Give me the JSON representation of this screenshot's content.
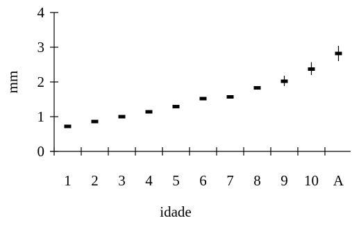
{
  "chart_data": {
    "type": "scatter",
    "title": "",
    "xlabel": "idade",
    "ylabel": "mm",
    "categories": [
      "1",
      "2",
      "3",
      "4",
      "5",
      "6",
      "7",
      "8",
      "9",
      "10",
      "A"
    ],
    "ylim": [
      0,
      4
    ],
    "yticks": [
      "0",
      "1",
      "2",
      "3",
      "4"
    ],
    "grid": false,
    "legend": "none",
    "series": [
      {
        "values": [
          0.72,
          0.86,
          1.0,
          1.14,
          1.29,
          1.52,
          1.57,
          1.83,
          2.02,
          2.37,
          2.82
        ],
        "error_low": [
          0.7,
          0.84,
          0.98,
          1.11,
          1.25,
          1.48,
          1.54,
          1.8,
          1.88,
          2.2,
          2.6
        ],
        "error_high": [
          0.74,
          0.89,
          1.02,
          1.17,
          1.34,
          1.57,
          1.61,
          1.86,
          2.18,
          2.57,
          3.04
        ]
      }
    ],
    "colors": {
      "marker": "#000000",
      "axis": "#000000"
    }
  }
}
